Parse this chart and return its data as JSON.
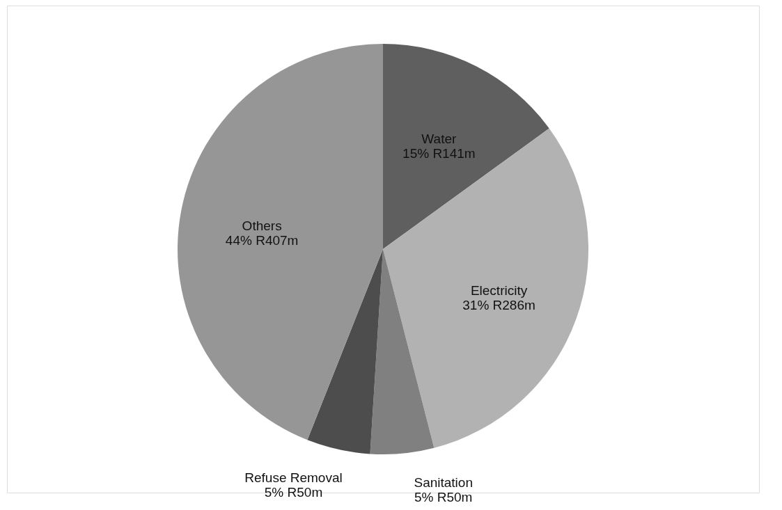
{
  "chart_data": {
    "type": "pie",
    "categories": [
      "Water",
      "Electricity",
      "Sanitation",
      "Refuse Removal",
      "Others"
    ],
    "values": [
      15,
      31,
      5,
      5,
      44
    ],
    "value_labels": [
      "15% R141m",
      "31% R286m",
      "5% R50m",
      "5% R50m",
      "44% R407m"
    ],
    "colors": [
      "#5f5f5f",
      "#b2b2b2",
      "#808080",
      "#4d4d4d",
      "#969696"
    ],
    "legend": false
  }
}
